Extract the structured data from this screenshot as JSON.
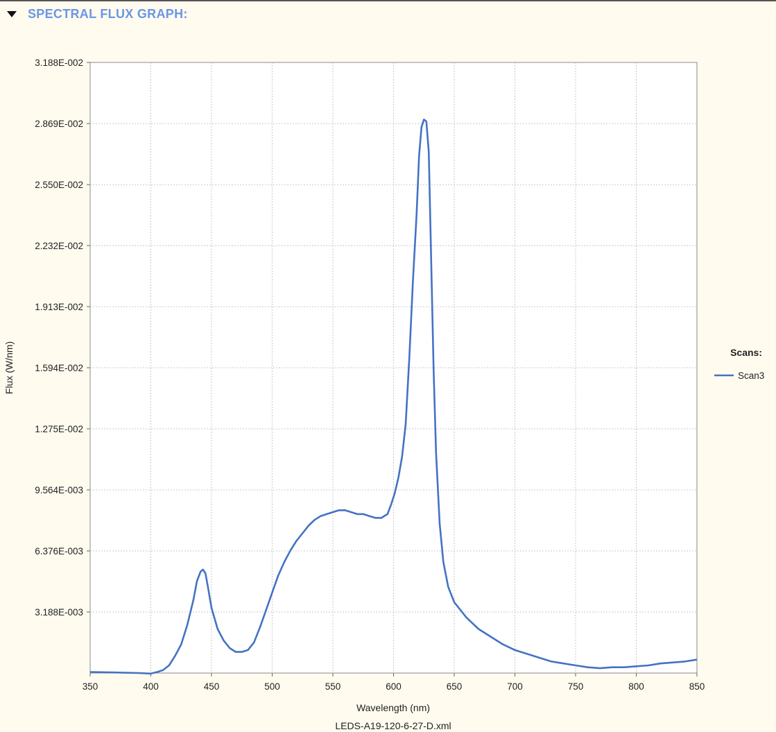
{
  "section": {
    "title": "SPECTRAL FLUX GRAPH:",
    "collapse_icon": "triangle-down-icon"
  },
  "chart_data": {
    "type": "line",
    "xlabel": "Wavelength (nm)",
    "ylabel": "Flux (W/nm)",
    "footer": "LEDS-A19-120-6-27-D.xml",
    "xlim": [
      350,
      850
    ],
    "ylim": [
      0,
      0.03188
    ],
    "x_ticks": [
      350,
      400,
      450,
      500,
      550,
      600,
      650,
      700,
      750,
      800,
      850
    ],
    "y_ticks": [
      0.003188,
      0.006376,
      0.009564,
      0.01275,
      0.01594,
      0.01913,
      0.02232,
      0.0255,
      0.02869,
      0.03188
    ],
    "y_tick_labels": [
      "3.188E-003",
      "6.376E-003",
      "9.564E-003",
      "1.275E-002",
      "1.594E-002",
      "1.913E-002",
      "2.232E-002",
      "2.550E-002",
      "2.869E-002",
      "3.188E-002"
    ],
    "grid": true,
    "legend": {
      "title": "Scans:",
      "placement": "right"
    },
    "series": [
      {
        "name": "Scan3",
        "color": "#4472c4",
        "points": [
          [
            350,
            5e-05
          ],
          [
            370,
            3e-05
          ],
          [
            390,
            0.0
          ],
          [
            400,
            -3e-05
          ],
          [
            405,
            5e-05
          ],
          [
            410,
            0.00015
          ],
          [
            415,
            0.0004
          ],
          [
            420,
            0.0009
          ],
          [
            425,
            0.0015
          ],
          [
            430,
            0.0025
          ],
          [
            435,
            0.0038
          ],
          [
            438,
            0.0048
          ],
          [
            441,
            0.0053
          ],
          [
            443,
            0.0054
          ],
          [
            445,
            0.0052
          ],
          [
            447,
            0.0045
          ],
          [
            450,
            0.0034
          ],
          [
            455,
            0.0023
          ],
          [
            460,
            0.0017
          ],
          [
            465,
            0.0013
          ],
          [
            470,
            0.0011
          ],
          [
            475,
            0.0011
          ],
          [
            480,
            0.0012
          ],
          [
            485,
            0.0016
          ],
          [
            490,
            0.0024
          ],
          [
            495,
            0.0033
          ],
          [
            500,
            0.0042
          ],
          [
            505,
            0.0051
          ],
          [
            510,
            0.0058
          ],
          [
            515,
            0.0064
          ],
          [
            520,
            0.0069
          ],
          [
            525,
            0.0073
          ],
          [
            530,
            0.0077
          ],
          [
            535,
            0.008
          ],
          [
            540,
            0.0082
          ],
          [
            545,
            0.0083
          ],
          [
            550,
            0.0084
          ],
          [
            555,
            0.0085
          ],
          [
            560,
            0.0085
          ],
          [
            565,
            0.0084
          ],
          [
            570,
            0.0083
          ],
          [
            575,
            0.0083
          ],
          [
            580,
            0.0082
          ],
          [
            585,
            0.0081
          ],
          [
            590,
            0.0081
          ],
          [
            595,
            0.0083
          ],
          [
            598,
            0.0088
          ],
          [
            601,
            0.0094
          ],
          [
            604,
            0.0102
          ],
          [
            607,
            0.0113
          ],
          [
            610,
            0.013
          ],
          [
            613,
            0.0165
          ],
          [
            616,
            0.0205
          ],
          [
            619,
            0.024
          ],
          [
            621,
            0.027
          ],
          [
            623,
            0.0285
          ],
          [
            625,
            0.0289
          ],
          [
            627,
            0.0288
          ],
          [
            629,
            0.0272
          ],
          [
            631,
            0.0215
          ],
          [
            633,
            0.0158
          ],
          [
            635,
            0.0115
          ],
          [
            638,
            0.0078
          ],
          [
            641,
            0.0058
          ],
          [
            645,
            0.0045
          ],
          [
            650,
            0.0037
          ],
          [
            655,
            0.0033
          ],
          [
            660,
            0.0029
          ],
          [
            670,
            0.0023
          ],
          [
            680,
            0.0019
          ],
          [
            690,
            0.0015
          ],
          [
            700,
            0.0012
          ],
          [
            710,
            0.001
          ],
          [
            720,
            0.0008
          ],
          [
            730,
            0.0006
          ],
          [
            740,
            0.0005
          ],
          [
            750,
            0.0004
          ],
          [
            760,
            0.0003
          ],
          [
            770,
            0.00025
          ],
          [
            780,
            0.0003
          ],
          [
            790,
            0.0003
          ],
          [
            800,
            0.00035
          ],
          [
            810,
            0.0004
          ],
          [
            820,
            0.0005
          ],
          [
            830,
            0.00055
          ],
          [
            840,
            0.0006
          ],
          [
            850,
            0.0007
          ]
        ]
      }
    ]
  }
}
